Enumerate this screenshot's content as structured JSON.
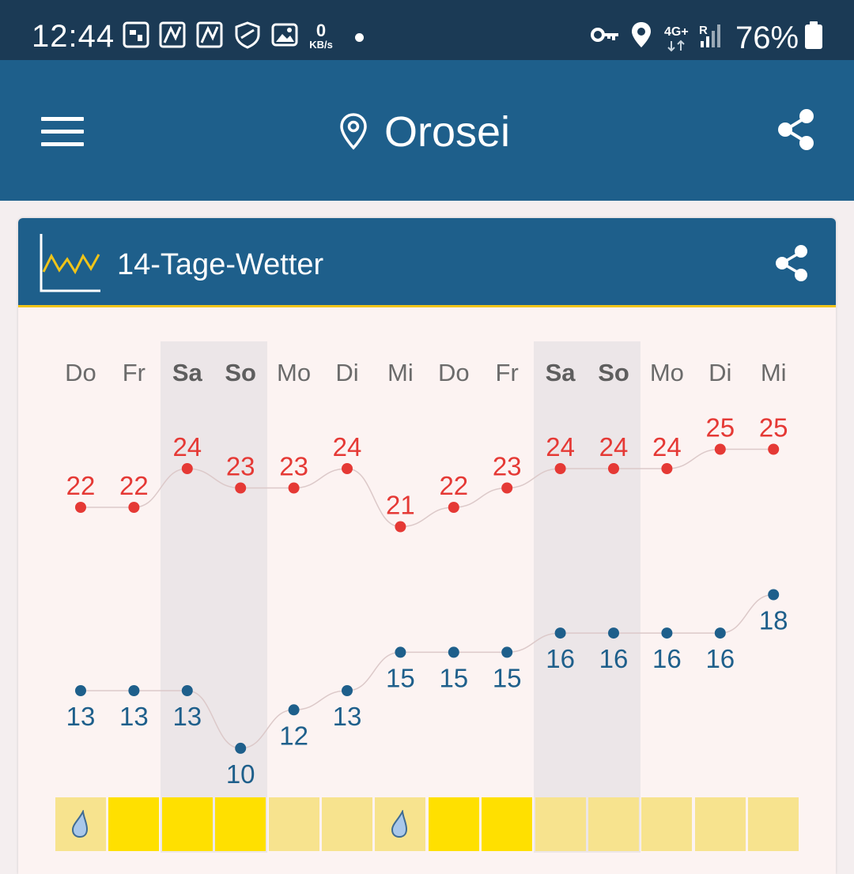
{
  "status_bar": {
    "time": "12:44",
    "speed_value": "0",
    "speed_unit": "KB/s",
    "network": "4G+",
    "roaming": "R",
    "battery": "76%",
    "icons": [
      "tablet-icon",
      "news-icon",
      "news-icon",
      "shield-icon",
      "gallery-icon",
      "vpn-key-icon",
      "location-icon",
      "signal-icon",
      "battery-icon"
    ]
  },
  "app_bar": {
    "location": "Orosei",
    "icons": [
      "menu-icon",
      "location-pin-icon",
      "share-icon"
    ]
  },
  "card": {
    "title": "14-Tage-Wetter",
    "icons": [
      "line-chart-icon",
      "share-icon"
    ]
  },
  "colors": {
    "status_bar": "#1b3a55",
    "app_bar": "#1e5f8b",
    "accent": "#f0c419",
    "max_temp": "#e53935",
    "min_temp": "#1e5f8b",
    "sunny": "#ffe000",
    "mixed": "#f7e38e"
  },
  "chart_data": {
    "type": "line",
    "categories": [
      "Do",
      "Fr",
      "Sa",
      "So",
      "Mo",
      "Di",
      "Mi",
      "Do",
      "Fr",
      "Sa",
      "So",
      "Mo",
      "Di",
      "Mi"
    ],
    "series": [
      {
        "values": [
          22,
          22,
          24,
          23,
          23,
          24,
          21,
          22,
          23,
          24,
          24,
          24,
          25,
          25
        ]
      },
      {
        "values": [
          13,
          13,
          13,
          10,
          12,
          13,
          15,
          15,
          15,
          16,
          16,
          16,
          16,
          18
        ]
      }
    ],
    "weekend_columns": [
      2,
      3,
      9,
      10
    ],
    "weather_tiles": [
      "rain",
      "sun",
      "sun",
      "sun",
      "mixed",
      "mixed",
      "rain",
      "sun",
      "sun",
      "mixed",
      "mixed",
      "mixed",
      "mixed",
      "mixed"
    ]
  }
}
